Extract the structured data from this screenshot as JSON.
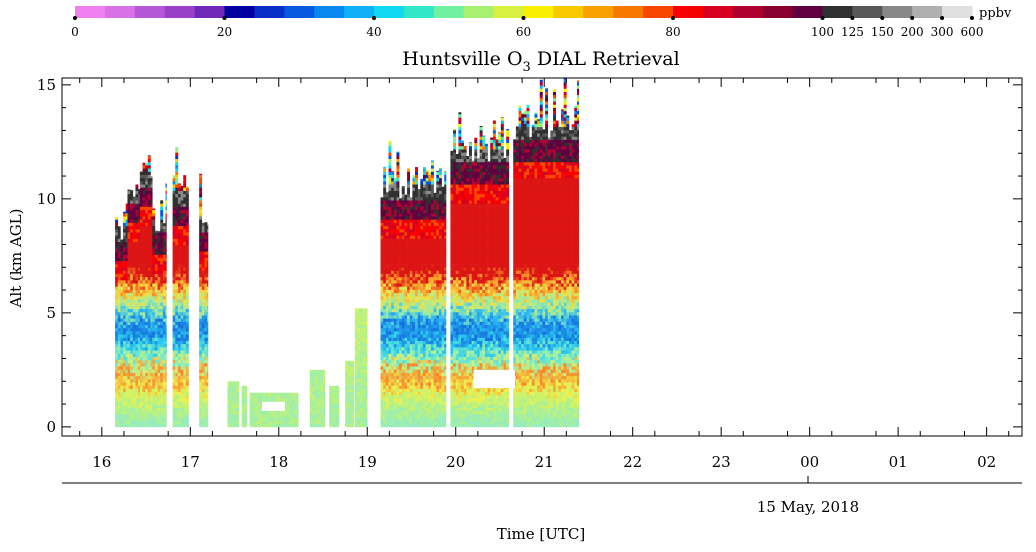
{
  "chart_data": {
    "type": "heatmap",
    "title": "Huntsville O",
    "title_subscript": "3",
    "title_suffix": " DIAL Retrieval",
    "ylabel": "Alt (km AGL)",
    "xlabel": "Time [UTC]",
    "date_label": "15 May, 2018",
    "y_ticks": [
      "0",
      "5",
      "10",
      "15"
    ],
    "ylim": [
      -0.4,
      15.3
    ],
    "x_ticks": [
      "16",
      "17",
      "18",
      "19",
      "20",
      "21",
      "22",
      "23",
      "00",
      "01",
      "02"
    ],
    "x_tick_hours": [
      16,
      17,
      18,
      19,
      20,
      21,
      22,
      23,
      24,
      25,
      26
    ],
    "xlim_hours": [
      15.55,
      26.4
    ],
    "colorbar": {
      "unit": "ppbv",
      "labels": [
        "0",
        "20",
        "40",
        "60",
        "80",
        "100",
        "125",
        "150",
        "200",
        "300",
        "600"
      ],
      "label_bins": [
        0,
        5,
        10,
        15,
        20,
        25,
        26,
        27,
        28,
        29,
        30
      ],
      "colors": [
        "#f080f0",
        "#d870e8",
        "#b458d8",
        "#9840c8",
        "#7028b8",
        "#0000a0",
        "#0830c8",
        "#0858e0",
        "#0888f0",
        "#10b0f8",
        "#10d8f0",
        "#30e8c8",
        "#70f0a0",
        "#a8f070",
        "#d8f040",
        "#f8f000",
        "#f8c800",
        "#f8a000",
        "#f87800",
        "#f84800",
        "#f80000",
        "#d80020",
        "#b00030",
        "#880030",
        "#600040",
        "#303030",
        "#585858",
        "#888888",
        "#b0b0b0",
        "#e0e0e0"
      ]
    },
    "segments": [
      {
        "start": 16.15,
        "end": 16.29,
        "top": 9.0
      },
      {
        "start": 16.29,
        "end": 16.43,
        "top": 10.7
      },
      {
        "start": 16.43,
        "end": 16.57,
        "top": 11.4
      },
      {
        "start": 16.57,
        "end": 16.73,
        "top": 9.3
      },
      {
        "start": 16.8,
        "end": 16.98,
        "top": 10.5
      },
      {
        "start": 17.1,
        "end": 17.2,
        "top": 9.4
      },
      {
        "start": 17.42,
        "end": 17.55,
        "top": 2.0
      },
      {
        "start": 17.58,
        "end": 17.64,
        "top": 1.8
      },
      {
        "start": 17.67,
        "end": 18.22,
        "top": 1.5
      },
      {
        "start": 18.35,
        "end": 18.52,
        "top": 2.5
      },
      {
        "start": 18.57,
        "end": 18.68,
        "top": 1.8
      },
      {
        "start": 18.75,
        "end": 18.85,
        "top": 2.9
      },
      {
        "start": 18.86,
        "end": 19.0,
        "top": 5.2
      },
      {
        "start": 19.15,
        "end": 19.89,
        "top": 10.8
      },
      {
        "start": 19.94,
        "end": 20.6,
        "top": 12.4
      },
      {
        "start": 20.65,
        "end": 21.39,
        "top": 13.4
      }
    ],
    "gaps": [
      {
        "start": 17.81,
        "end": 18.07,
        "bottom": 0.7,
        "top": 1.1
      },
      {
        "start": 20.2,
        "end": 20.67,
        "bottom": 1.7,
        "top": 2.5
      }
    ]
  }
}
